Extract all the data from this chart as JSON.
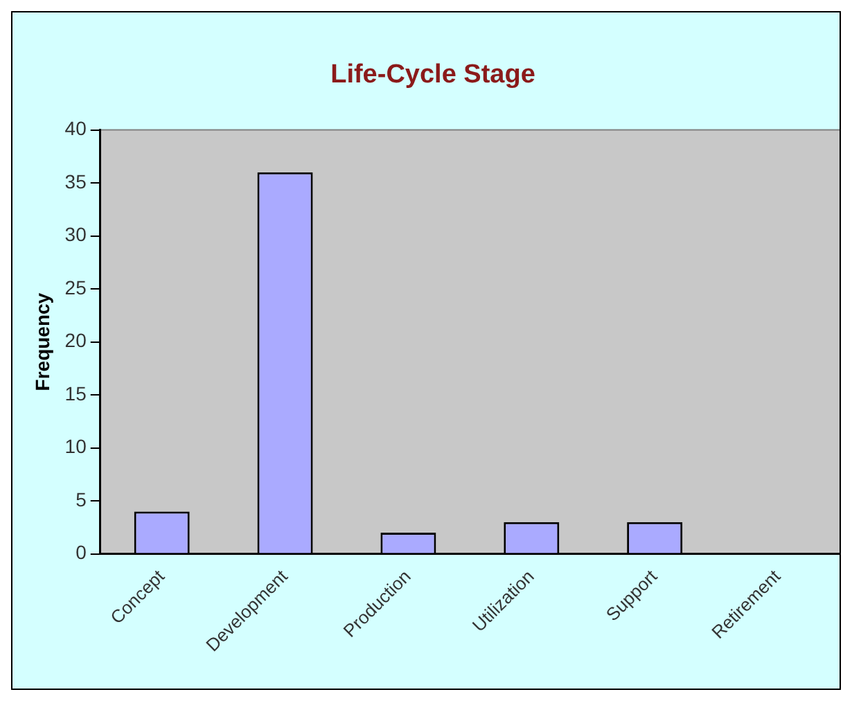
{
  "chart_data": {
    "type": "bar",
    "title": "Life-Cycle Stage",
    "ylabel": "Frequency",
    "categories": [
      "Concept",
      "Development",
      "Production",
      "Utilization",
      "Support",
      "Retirement"
    ],
    "values": [
      4,
      36,
      2,
      3,
      3,
      0
    ],
    "color": "#aaaaff",
    "ylim": [
      0,
      40
    ],
    "yticks": [
      0,
      5,
      10,
      15,
      20,
      25,
      30,
      35,
      40
    ],
    "grid": false,
    "legend": false
  }
}
